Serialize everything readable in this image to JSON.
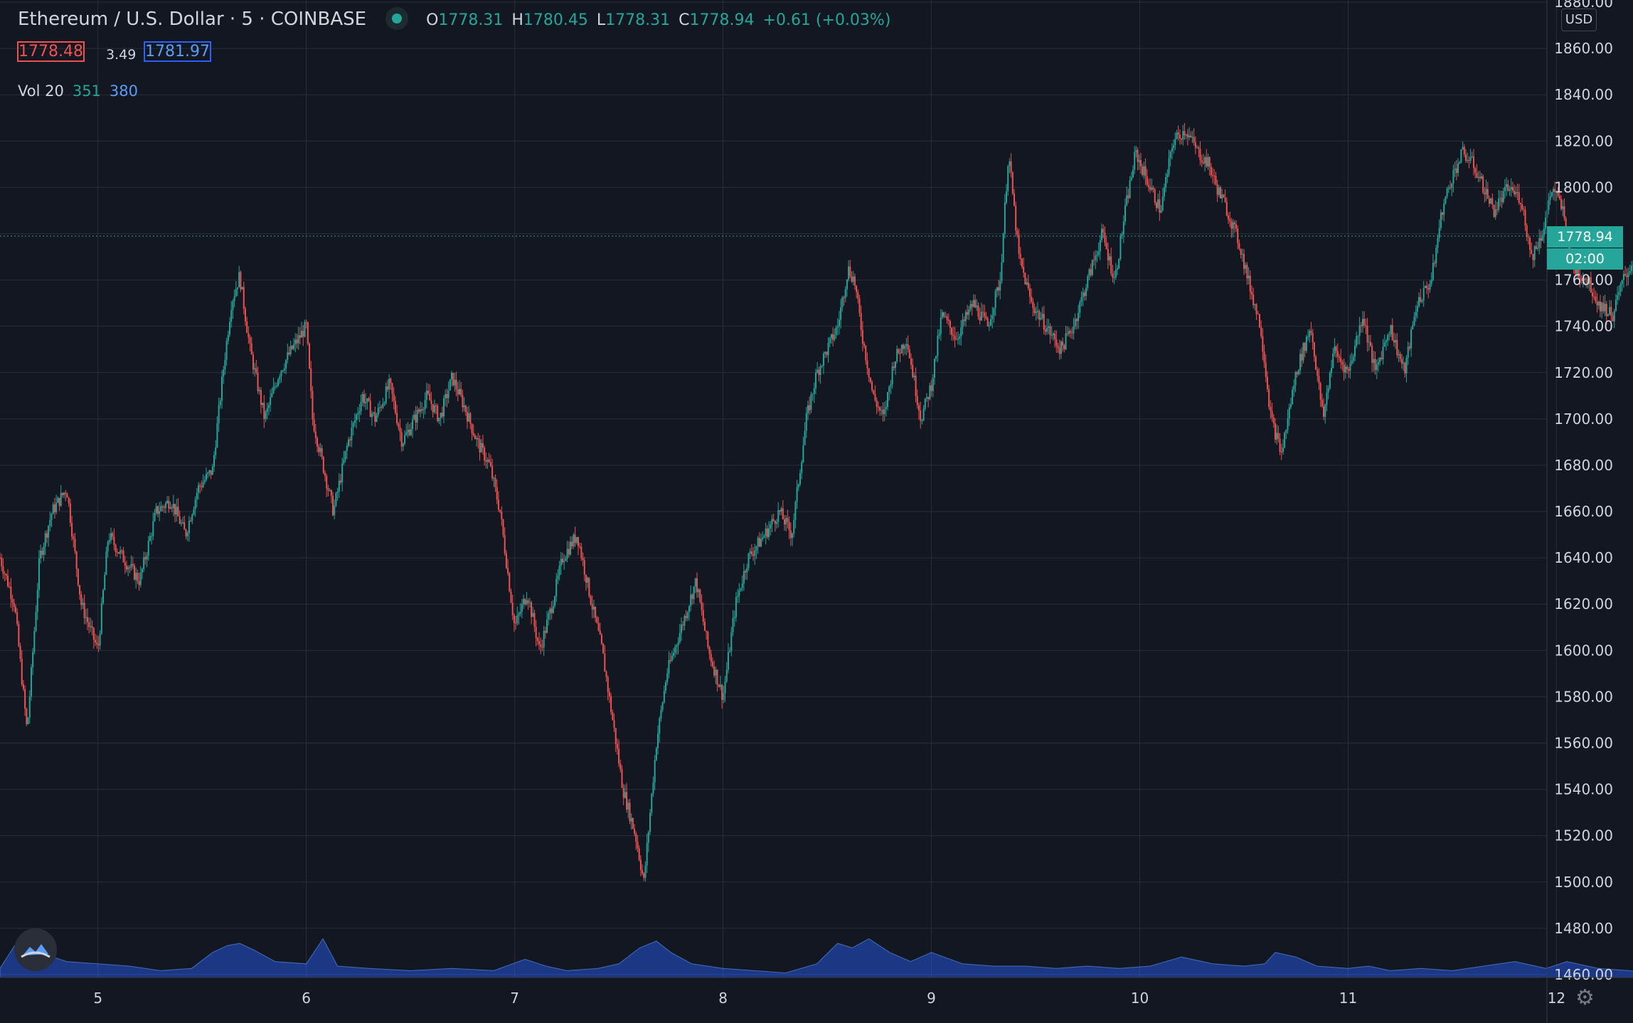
{
  "header": {
    "title": "Ethereum / U.S. Dollar · 5 · COINBASE",
    "open_label": "O",
    "open": "1778.31",
    "high_label": "H",
    "high": "1780.45",
    "low_label": "L",
    "low": "1778.31",
    "close_label": "C",
    "close": "1778.94",
    "change": "+0.61 (+0.03%)"
  },
  "quote": {
    "bid": "1778.48",
    "spread": "3.49",
    "ask": "1781.97"
  },
  "volume_legend": {
    "label": "Vol 20",
    "v1": "351",
    "v2": "380"
  },
  "price_axis": {
    "currency": "USD",
    "last_price": "1778.94",
    "countdown": "02:00"
  },
  "colors": {
    "up": "#26a69a",
    "down": "#ef5350",
    "volume": "#2962ff",
    "background": "#131722",
    "grid": "#2a2e39"
  },
  "icons": {
    "logo": "tradingview-cloud-icon",
    "settings": "gear-icon"
  },
  "chart_data": {
    "type": "candlestick",
    "symbol": "ETH/USD",
    "ylim": [
      1460,
      1880
    ],
    "y_ticks": [
      "1460.00",
      "1480.00",
      "1500.00",
      "1520.00",
      "1540.00",
      "1560.00",
      "1580.00",
      "1600.00",
      "1620.00",
      "1640.00",
      "1660.00",
      "1680.00",
      "1700.00",
      "1720.00",
      "1740.00",
      "1760.00",
      "1780.00",
      "1800.00",
      "1820.00",
      "1840.00",
      "1860.00",
      "1880.00"
    ],
    "x_ticks": [
      "5",
      "6",
      "7",
      "8",
      "9",
      "10",
      "11",
      "12"
    ],
    "x_tick_days": [
      5,
      6,
      7,
      8,
      9,
      10,
      11,
      12
    ],
    "xlim": [
      4.53,
      13.2
    ],
    "last_price": 1778.94,
    "grid": true,
    "price_path": {
      "x": [
        4.53,
        4.6,
        4.66,
        4.72,
        4.78,
        4.85,
        4.92,
        5.0,
        5.05,
        5.12,
        5.2,
        5.28,
        5.35,
        5.42,
        5.48,
        5.55,
        5.6,
        5.64,
        5.68,
        5.73,
        5.8,
        5.87,
        5.93,
        6.0,
        6.03,
        6.08,
        6.13,
        6.2,
        6.27,
        6.33,
        6.4,
        6.46,
        6.52,
        6.58,
        6.64,
        6.7,
        6.76,
        6.82,
        6.88,
        6.93,
        7.0,
        7.06,
        7.12,
        7.18,
        7.23,
        7.3,
        7.37,
        7.42,
        7.47,
        7.52,
        7.58,
        7.62,
        7.65,
        7.68,
        7.73,
        7.8,
        7.87,
        7.93,
        8.0,
        8.06,
        8.12,
        8.2,
        8.27,
        8.33,
        8.4,
        8.45,
        8.5,
        8.55,
        8.6,
        8.63,
        8.67,
        8.72,
        8.77,
        8.82,
        8.88,
        8.95,
        9.0,
        9.05,
        9.12,
        9.2,
        9.27,
        9.33,
        9.37,
        9.42,
        9.48,
        9.55,
        9.62,
        9.68,
        9.75,
        9.82,
        9.88,
        9.93,
        9.98,
        10.05,
        10.1,
        10.16,
        10.22,
        10.28,
        10.33,
        10.37,
        10.42,
        10.48,
        10.52,
        10.58,
        10.63,
        10.68,
        10.75,
        10.82,
        10.88,
        10.93,
        11.0,
        11.07,
        11.13,
        11.2,
        11.27,
        11.33,
        11.4,
        11.45,
        11.5,
        11.55,
        11.6,
        11.65,
        11.7,
        11.77,
        11.83,
        11.88,
        11.93,
        11.98,
        12.03,
        12.08,
        12.15,
        12.2,
        12.27,
        12.32,
        12.38,
        12.43,
        12.5
      ],
      "y": [
        1640,
        1620,
        1565,
        1640,
        1660,
        1670,
        1620,
        1600,
        1650,
        1640,
        1630,
        1660,
        1665,
        1650,
        1670,
        1678,
        1720,
        1750,
        1762,
        1730,
        1700,
        1720,
        1730,
        1740,
        1700,
        1680,
        1660,
        1690,
        1710,
        1700,
        1715,
        1690,
        1700,
        1710,
        1700,
        1718,
        1705,
        1690,
        1680,
        1660,
        1610,
        1625,
        1600,
        1620,
        1640,
        1650,
        1620,
        1600,
        1570,
        1540,
        1520,
        1500,
        1530,
        1560,
        1590,
        1610,
        1630,
        1600,
        1580,
        1620,
        1640,
        1650,
        1660,
        1650,
        1700,
        1720,
        1730,
        1740,
        1765,
        1760,
        1735,
        1710,
        1700,
        1725,
        1735,
        1700,
        1715,
        1745,
        1735,
        1750,
        1740,
        1760,
        1815,
        1770,
        1750,
        1740,
        1730,
        1740,
        1760,
        1780,
        1760,
        1790,
        1815,
        1800,
        1790,
        1820,
        1825,
        1815,
        1810,
        1800,
        1790,
        1775,
        1760,
        1740,
        1700,
        1685,
        1720,
        1740,
        1700,
        1730,
        1720,
        1745,
        1720,
        1740,
        1720,
        1750,
        1760,
        1790,
        1805,
        1815,
        1810,
        1800,
        1790,
        1800,
        1795,
        1770,
        1780,
        1800,
        1790,
        1765,
        1760,
        1750,
        1745,
        1760,
        1770,
        1765,
        1778.94
      ]
    },
    "volume_path": {
      "x": [
        4.53,
        4.6,
        4.66,
        4.75,
        4.85,
        5.0,
        5.15,
        5.3,
        5.45,
        5.55,
        5.62,
        5.68,
        5.75,
        5.85,
        6.0,
        6.08,
        6.15,
        6.3,
        6.5,
        6.7,
        6.9,
        7.05,
        7.15,
        7.25,
        7.4,
        7.5,
        7.6,
        7.68,
        7.75,
        7.85,
        8.0,
        8.15,
        8.3,
        8.45,
        8.55,
        8.62,
        8.7,
        8.8,
        8.9,
        9.0,
        9.15,
        9.3,
        9.45,
        9.6,
        9.75,
        9.9,
        10.05,
        10.2,
        10.35,
        10.5,
        10.6,
        10.65,
        10.75,
        10.85,
        11.0,
        11.1,
        11.2,
        11.35,
        11.5,
        11.65,
        11.8,
        11.95,
        12.05,
        12.2,
        12.35,
        12.5
      ],
      "y": [
        8,
        28,
        34,
        20,
        14,
        12,
        10,
        6,
        8,
        22,
        28,
        30,
        24,
        14,
        12,
        34,
        10,
        8,
        6,
        8,
        6,
        16,
        10,
        6,
        8,
        12,
        26,
        32,
        22,
        12,
        8,
        6,
        4,
        12,
        30,
        26,
        34,
        22,
        14,
        22,
        12,
        10,
        10,
        8,
        10,
        8,
        10,
        18,
        12,
        10,
        12,
        22,
        18,
        10,
        8,
        10,
        6,
        8,
        6,
        10,
        14,
        8,
        14,
        8,
        6,
        2
      ]
    }
  }
}
